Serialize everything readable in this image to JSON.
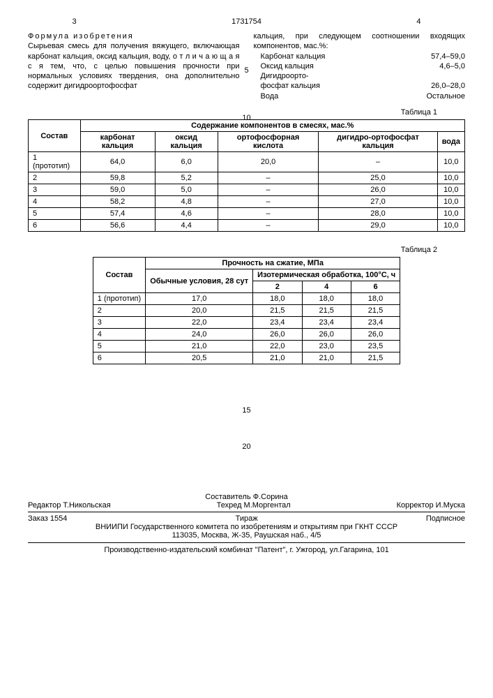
{
  "header": {
    "left_page": "3",
    "doc_num": "1731754",
    "right_page": "4"
  },
  "formula_title": "Формула изобретения",
  "left_text": "Сырьевая смесь для получения вяжущего, включающая карбонат кальция, оксид кальция, воду, о т л и ч а ю щ а я с я тем, что, с целью повышения прочности при нормальных условиях твердения, она дополнительно содержит дигидроортофосфат",
  "right_text": "кальция, при следующем соотношении входящих компонентов, мас.%:",
  "ratios": [
    {
      "name": "Карбонат кальция",
      "val": "57,4–59,0"
    },
    {
      "name": "Оксид кальция",
      "val": "4,6–5,0"
    },
    {
      "name": "Дигидроорто-",
      "val": ""
    },
    {
      "name": "фосфат кальция",
      "val": "26,0–28,0"
    },
    {
      "name": "Вода",
      "val": "Остальное"
    }
  ],
  "margin5": "5",
  "margin10": "10",
  "table1": {
    "label": "Таблица 1",
    "h_sostav": "Состав",
    "h_content": "Содержание компонентов в смесях, мас.%",
    "cols": [
      "карбонат кальция",
      "оксид кальция",
      "ортофосфорная кислота",
      "дигидро-ортофосфат кальция",
      "вода"
    ],
    "rows": [
      [
        "1 (прототип)",
        "64,0",
        "6,0",
        "20,0",
        "–",
        "10,0"
      ],
      [
        "2",
        "59,8",
        "5,2",
        "–",
        "25,0",
        "10,0"
      ],
      [
        "3",
        "59,0",
        "5,0",
        "–",
        "26,0",
        "10,0"
      ],
      [
        "4",
        "58,2",
        "4,8",
        "–",
        "27,0",
        "10,0"
      ],
      [
        "5",
        "57,4",
        "4,6",
        "–",
        "28,0",
        "10,0"
      ],
      [
        "6",
        "56,6",
        "4,4",
        "–",
        "29,0",
        "10,0"
      ]
    ]
  },
  "table2": {
    "label": "Таблица 2",
    "h_sostav": "Состав",
    "h_strength": "Прочность на сжатие, МПа",
    "h_normal": "Обычные условия, 28 сут",
    "h_iso": "Изотермическая обработка, 100°С, ч",
    "sub_cols": [
      "2",
      "4",
      "6"
    ],
    "rows": [
      [
        "1 (прототип)",
        "17,0",
        "18,0",
        "18,0",
        "18,0"
      ],
      [
        "2",
        "20,0",
        "21,5",
        "21,5",
        "21,5"
      ],
      [
        "3",
        "22,0",
        "23,4",
        "23,4",
        "23,4"
      ],
      [
        "4",
        "24,0",
        "26,0",
        "26,0",
        "26,0"
      ],
      [
        "5",
        "21,0",
        "22,0",
        "23,0",
        "23,5"
      ],
      [
        "6",
        "20,5",
        "21,0",
        "21,0",
        "21,5"
      ]
    ]
  },
  "margin15": "15",
  "margin20": "20",
  "footer": {
    "editor_label": "Редактор",
    "editor": "Т.Никольская",
    "compiler_label": "Составитель",
    "compiler": "Ф.Сорина",
    "tehred_label": "Техред",
    "tehred": "М.Моргентал",
    "corrector_label": "Корректор",
    "corrector": "И.Муска",
    "order": "Заказ  1554",
    "tirazh": "Тираж",
    "sub": "Подписное",
    "org": "ВНИИПИ Государственного комитета по изобретениям и открытиям при ГКНТ СССР",
    "addr": "113035, Москва, Ж-35, Раушская наб., 4/5",
    "print": "Производственно-издательский комбинат \"Патент\", г. Ужгород, ул.Гагарина, 101"
  }
}
